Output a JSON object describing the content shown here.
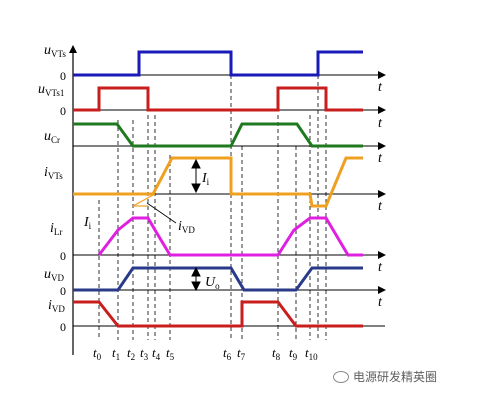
{
  "signals": [
    {
      "key": "uVTs",
      "main": "u",
      "sub": "VTs",
      "color": "#1a1ab8",
      "show_zero": true,
      "show_t": true
    },
    {
      "key": "uVTs1",
      "main": "u",
      "sub": "VTs1",
      "color": "#c81e1e",
      "show_zero": true,
      "show_t": true
    },
    {
      "key": "uCr",
      "main": "u",
      "sub": "Cr",
      "color": "#1f7a1f",
      "show_zero": false,
      "show_t": true
    },
    {
      "key": "iVTs",
      "main": "i",
      "sub": "VTs",
      "color": "#f0a020",
      "show_zero": false,
      "show_t": true
    },
    {
      "key": "iLr",
      "main": "i",
      "sub": "Lr",
      "color": "#e020e0",
      "show_zero": true,
      "show_t": true
    },
    {
      "key": "uVD",
      "main": "u",
      "sub": "VD",
      "color": "#2a3a8a",
      "show_zero": true,
      "show_t": true
    },
    {
      "key": "iVD",
      "main": "i",
      "sub": "VD",
      "color": "#c81e1e",
      "show_zero": true,
      "show_t": false
    }
  ],
  "zero_label": "0",
  "time_axis_label": "t",
  "annotations": {
    "Ii_a": {
      "main": "I",
      "sub": "i"
    },
    "Ii_b": {
      "main": "I",
      "sub": "i"
    },
    "iVD": {
      "main": "i",
      "sub": "VD"
    },
    "Uo": {
      "main": "U",
      "sub": "o"
    }
  },
  "time_marks": [
    {
      "main": "t",
      "sub": "0"
    },
    {
      "main": "t",
      "sub": "1"
    },
    {
      "main": "t",
      "sub": "2"
    },
    {
      "main": "t",
      "sub": "3"
    },
    {
      "main": "t",
      "sub": "4"
    },
    {
      "main": "t",
      "sub": "5"
    },
    {
      "main": "t",
      "sub": "6"
    },
    {
      "main": "t",
      "sub": "7"
    },
    {
      "main": "t",
      "sub": "8"
    },
    {
      "main": "t",
      "sub": "9"
    },
    {
      "main": "t",
      "sub": "10"
    }
  ],
  "watermark": "电源研发精英圈"
}
